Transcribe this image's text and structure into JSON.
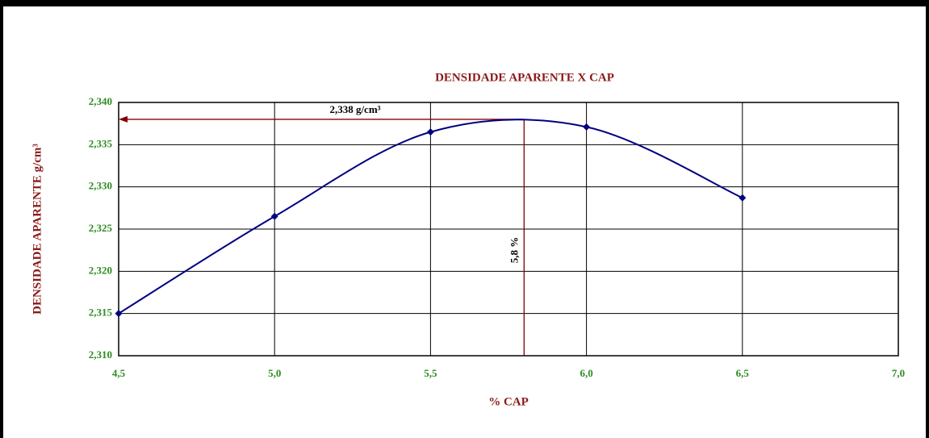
{
  "chart_data": {
    "type": "line",
    "title": "DENSIDADE APARENTE X CAP",
    "x_label": "% CAP",
    "y_label": "DENSIDADE APARENTE g/cm³",
    "x": [
      4.5,
      5.0,
      5.5,
      6.0,
      6.5
    ],
    "series": [
      {
        "name": "Densidade aparente",
        "color": "#000080",
        "values": [
          2.315,
          2.3265,
          2.3365,
          2.3371,
          2.3287
        ]
      }
    ],
    "xlim": [
      4.5,
      7.0
    ],
    "xticks": [
      {
        "value": 4.5,
        "label": "4,5"
      },
      {
        "value": 5.0,
        "label": "5,0"
      },
      {
        "value": 5.5,
        "label": "5,5"
      },
      {
        "value": 6.0,
        "label": "6,0"
      },
      {
        "value": 6.5,
        "label": "6,5"
      },
      {
        "value": 7.0,
        "label": "7,0"
      }
    ],
    "ylim": [
      2.31,
      2.34
    ],
    "yticks": [
      {
        "value": 2.31,
        "label": "2,310"
      },
      {
        "value": 2.315,
        "label": "2,315"
      },
      {
        "value": 2.32,
        "label": "2,320"
      },
      {
        "value": 2.325,
        "label": "2,325"
      },
      {
        "value": 2.33,
        "label": "2,330"
      },
      {
        "value": 2.335,
        "label": "2,335"
      },
      {
        "value": 2.34,
        "label": "2,340"
      }
    ],
    "grid": true,
    "smooth": true,
    "optimum": {
      "x": 5.8,
      "y": 2.338,
      "x_label": "5,8  %",
      "y_label": "2,338 g/cm³",
      "color": "#800000"
    }
  }
}
